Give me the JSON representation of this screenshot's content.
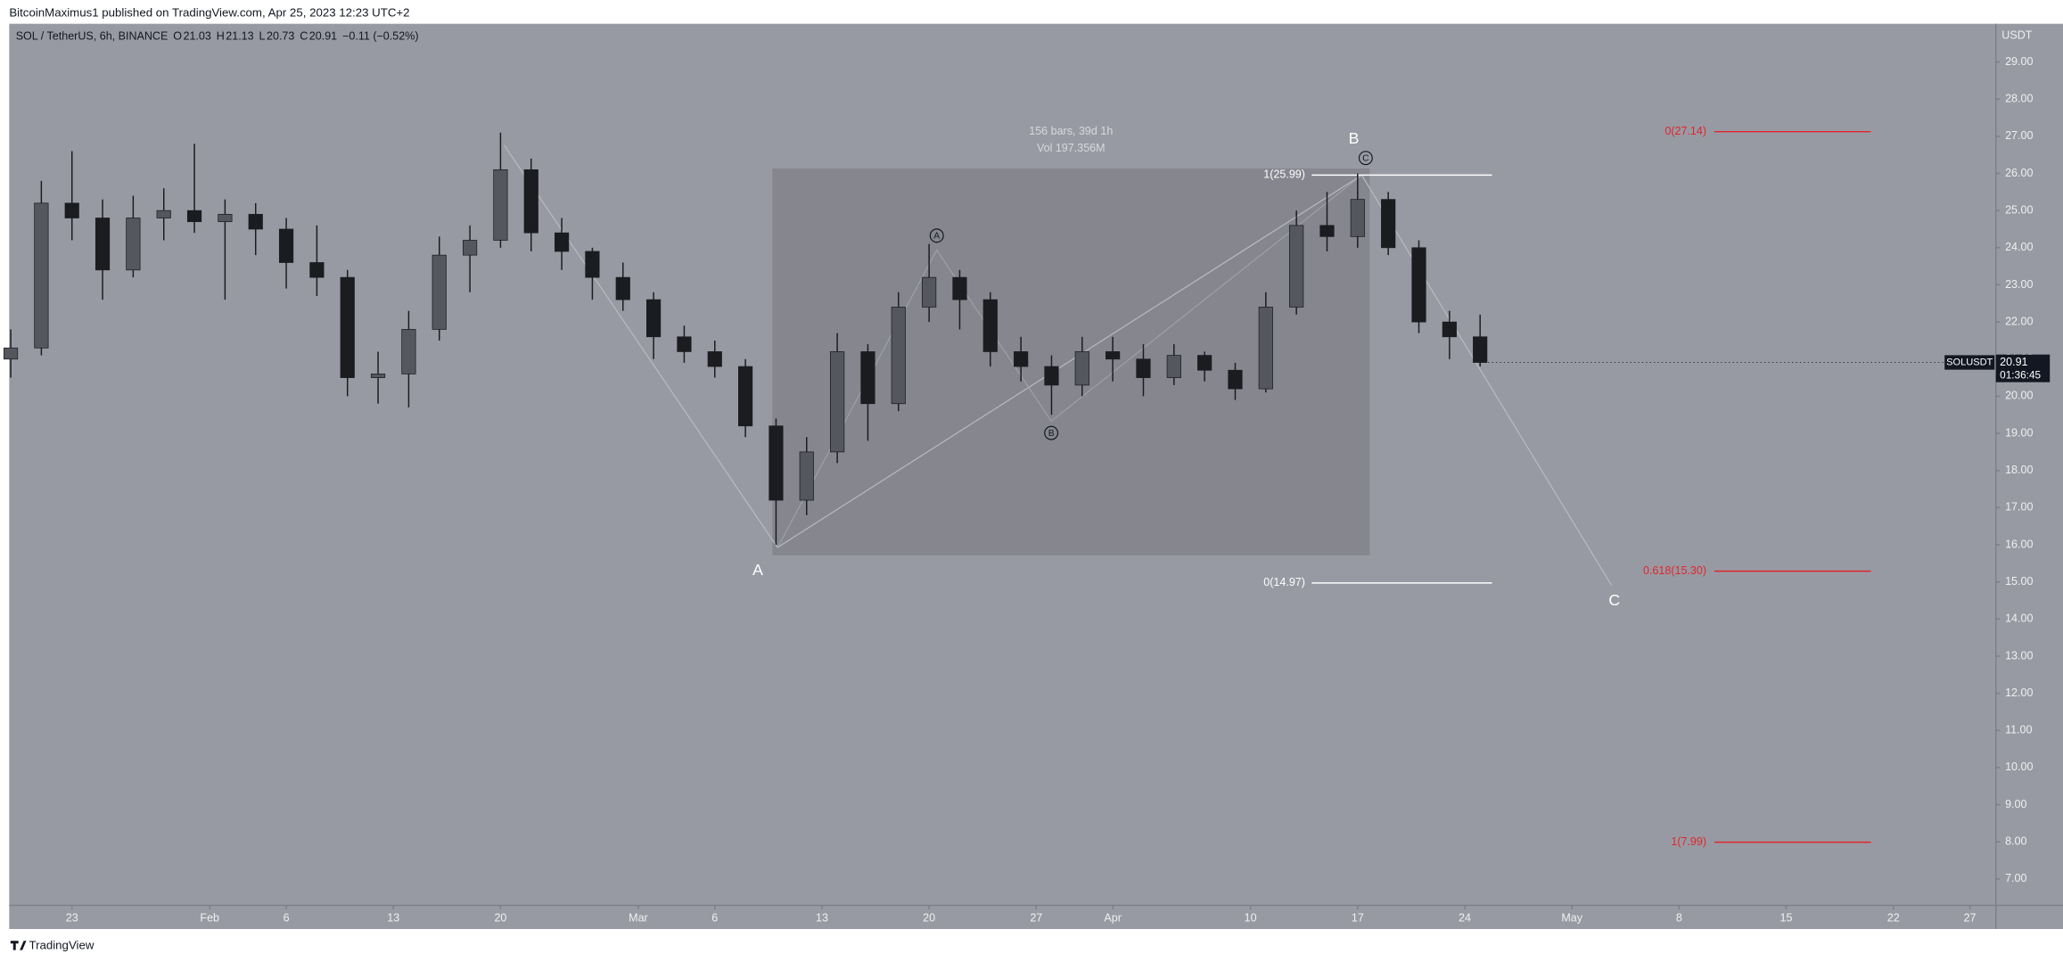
{
  "header": {
    "text": "BitcoinMaximus1 published on TradingView.com, Apr 25, 2023 12:23 UTC+2"
  },
  "footer": {
    "brand": "TradingView"
  },
  "chart_data": {
    "type": "candlestick",
    "title": "SOL / TetherUS, 6h, BINANCE",
    "legend": [
      {
        "label": "O",
        "value": "21.03"
      },
      {
        "label": "H",
        "value": "21.13"
      },
      {
        "label": "L",
        "value": "20.73"
      },
      {
        "label": "C",
        "value": "20.91"
      }
    ],
    "change": "−0.11 (−0.52%)",
    "y_axis_unit": "USDT",
    "price_tag": {
      "symbol": "SOLUSDT",
      "price": "20.91",
      "countdown": "01:36:45"
    },
    "x": [
      19,
      21,
      23,
      25,
      27,
      29,
      31,
      33,
      35,
      37,
      39,
      41,
      43,
      45,
      47,
      49,
      51,
      53,
      55,
      57,
      59,
      61,
      63,
      65,
      67,
      69,
      71,
      73,
      75,
      77,
      79,
      81,
      83,
      85,
      87,
      89,
      91,
      93,
      95,
      97,
      99,
      101,
      103,
      105,
      107,
      109,
      111,
      113,
      115
    ],
    "open": [
      21.0,
      21.3,
      25.2,
      24.8,
      23.4,
      24.8,
      25.0,
      24.7,
      24.9,
      24.5,
      23.6,
      23.2,
      20.5,
      20.6,
      21.8,
      23.8,
      24.2,
      26.1,
      24.4,
      23.9,
      23.2,
      22.6,
      21.6,
      21.2,
      20.8,
      19.2,
      17.2,
      18.5,
      21.2,
      19.8,
      22.4,
      23.2,
      22.6,
      21.2,
      20.8,
      20.3,
      21.2,
      21.0,
      20.5,
      21.1,
      20.7,
      20.2,
      22.4,
      24.6,
      24.3,
      25.3,
      24.0,
      22.0,
      21.6
    ],
    "high": [
      21.8,
      25.8,
      26.6,
      25.3,
      25.4,
      25.6,
      26.8,
      25.3,
      25.2,
      24.8,
      24.6,
      23.4,
      21.2,
      22.3,
      24.3,
      24.6,
      27.1,
      26.4,
      24.8,
      24.0,
      23.6,
      22.8,
      21.9,
      21.5,
      21.0,
      19.4,
      18.9,
      21.7,
      21.4,
      22.8,
      24.1,
      23.4,
      22.8,
      21.6,
      21.1,
      21.6,
      21.6,
      21.4,
      21.4,
      21.2,
      20.9,
      22.8,
      25.0,
      25.5,
      26.0,
      25.5,
      24.2,
      22.3,
      22.2
    ],
    "low": [
      20.5,
      21.1,
      24.2,
      22.6,
      23.2,
      24.2,
      24.4,
      22.6,
      23.8,
      22.9,
      22.7,
      20.0,
      19.8,
      19.7,
      21.5,
      22.8,
      24.0,
      23.9,
      23.4,
      22.6,
      22.3,
      21.0,
      20.9,
      20.5,
      18.9,
      16.0,
      16.8,
      18.2,
      18.8,
      19.6,
      22.0,
      21.8,
      20.8,
      20.4,
      19.5,
      20.0,
      20.4,
      20.0,
      20.3,
      20.4,
      19.9,
      20.1,
      22.2,
      23.9,
      24.0,
      23.8,
      21.7,
      21.0,
      20.8
    ],
    "close": [
      21.3,
      25.2,
      24.8,
      23.4,
      24.8,
      25.0,
      24.7,
      24.9,
      24.5,
      23.6,
      23.2,
      20.5,
      20.6,
      21.8,
      23.8,
      24.2,
      26.1,
      24.4,
      23.9,
      23.2,
      22.6,
      21.6,
      21.2,
      20.8,
      19.2,
      17.2,
      18.5,
      21.2,
      19.8,
      22.4,
      23.2,
      22.6,
      21.2,
      20.8,
      20.3,
      21.2,
      21.0,
      20.5,
      21.1,
      20.7,
      20.2,
      22.4,
      24.6,
      24.3,
      25.3,
      24.0,
      22.0,
      21.6,
      20.91
    ],
    "color": "#1b1c20",
    "xlim": [
      18.9,
      148.7
    ],
    "xticks": [
      {
        "value": 23,
        "label": "23"
      },
      {
        "value": 32,
        "label": "Feb"
      },
      {
        "value": 37,
        "label": "6"
      },
      {
        "value": 44,
        "label": "13"
      },
      {
        "value": 51,
        "label": "20"
      },
      {
        "value": 60,
        "label": "Mar"
      },
      {
        "value": 65,
        "label": "6"
      },
      {
        "value": 72,
        "label": "13"
      },
      {
        "value": 79,
        "label": "20"
      },
      {
        "value": 86,
        "label": "27"
      },
      {
        "value": 91,
        "label": "Apr"
      },
      {
        "value": 100,
        "label": "10"
      },
      {
        "value": 107,
        "label": "17"
      },
      {
        "value": 114,
        "label": "24"
      },
      {
        "value": 121,
        "label": "May"
      },
      {
        "value": 128,
        "label": "8"
      },
      {
        "value": 135,
        "label": "15"
      },
      {
        "value": 142,
        "label": "22"
      },
      {
        "value": 147,
        "label": "27"
      }
    ],
    "ylim": [
      6.29,
      30.03
    ],
    "yticks": [
      {
        "value": 7,
        "label": "7.00"
      },
      {
        "value": 8,
        "label": "8.00"
      },
      {
        "value": 9,
        "label": "9.00"
      },
      {
        "value": 10,
        "label": "10.00"
      },
      {
        "value": 11,
        "label": "11.00"
      },
      {
        "value": 12,
        "label": "12.00"
      },
      {
        "value": 13,
        "label": "13.00"
      },
      {
        "value": 14,
        "label": "14.00"
      },
      {
        "value": 15,
        "label": "15.00"
      },
      {
        "value": 16,
        "label": "16.00"
      },
      {
        "value": 17,
        "label": "17.00"
      },
      {
        "value": 18,
        "label": "18.00"
      },
      {
        "value": 19,
        "label": "19.00"
      },
      {
        "value": 20,
        "label": "20.00"
      },
      {
        "value": 21,
        "label": "21.00"
      },
      {
        "value": 22,
        "label": "22.00"
      },
      {
        "value": 23,
        "label": "23.00"
      },
      {
        "value": 24,
        "label": "24.00"
      },
      {
        "value": 25,
        "label": "25.00"
      },
      {
        "value": 26,
        "label": "26.00"
      },
      {
        "value": 27,
        "label": "27.00"
      },
      {
        "value": 28,
        "label": "28.00"
      },
      {
        "value": 29,
        "label": "29.00"
      }
    ],
    "grid": false,
    "measure": {
      "bars": "156 bars, 39d 1h",
      "volume": "Vol 197.356M"
    },
    "wave_labels": {
      "major_a": "A",
      "major_b": "B",
      "major_c": "C",
      "minor_a": "A",
      "minor_b": "B",
      "minor_c": "C"
    },
    "fib_white": [
      "1(25.99)",
      "0(14.97)"
    ],
    "fib_red": [
      "0(27.14)",
      "0.618(15.30)",
      "1(7.99)"
    ]
  }
}
